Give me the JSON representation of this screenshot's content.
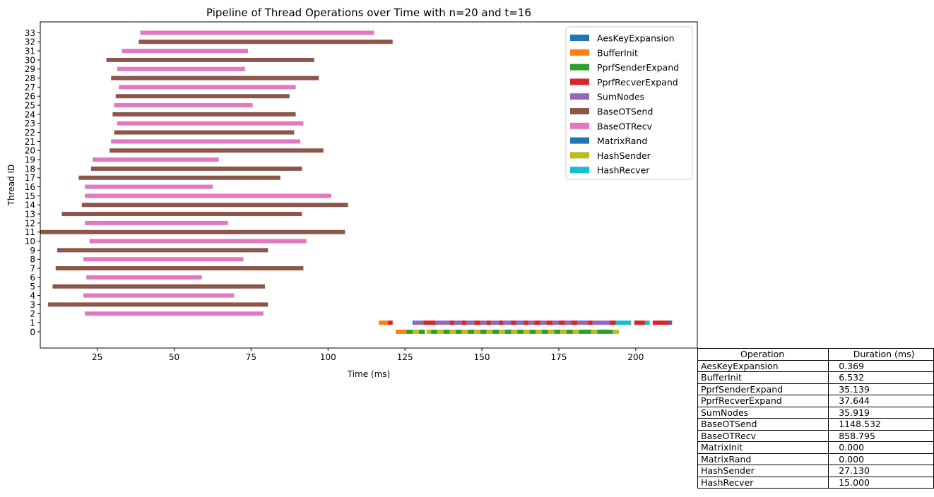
{
  "chart_data": {
    "type": "gantt",
    "title": "Pipeline of Thread Operations over Time with n=20 and t=16",
    "xlabel": "Time (ms)",
    "ylabel": "Thread ID",
    "xlim": [
      6.5,
      220
    ],
    "xticks": [
      25,
      50,
      75,
      100,
      125,
      150,
      175,
      200
    ],
    "yticks": [
      0,
      1,
      2,
      3,
      4,
      5,
      6,
      7,
      8,
      9,
      10,
      11,
      12,
      13,
      14,
      15,
      16,
      17,
      18,
      19,
      20,
      21,
      22,
      23,
      24,
      25,
      26,
      27,
      28,
      29,
      30,
      31,
      32,
      33
    ],
    "ylim": [
      -1.8,
      34.2
    ],
    "grid": false,
    "legend_position": "top-right",
    "legend": [
      {
        "name": "AesKeyExpansion",
        "color": "#1f77b4"
      },
      {
        "name": "BufferInit",
        "color": "#ff7f0e"
      },
      {
        "name": "PprfSenderExpand",
        "color": "#2ca02c"
      },
      {
        "name": "PprfRecverExpand",
        "color": "#d62728"
      },
      {
        "name": "SumNodes",
        "color": "#9467bd"
      },
      {
        "name": "BaseOTSend",
        "color": "#8c564b"
      },
      {
        "name": "BaseOTRecv",
        "color": "#e377c2"
      },
      {
        "name": "MatrixRand",
        "color": "#1f77b4"
      },
      {
        "name": "HashSender",
        "color": "#bcbd22"
      },
      {
        "name": "HashRecver",
        "color": "#17becf"
      }
    ],
    "colors": {
      "AesKeyExpansion": "#1f77b4",
      "BufferInit": "#ff7f0e",
      "PprfSenderExpand": "#2ca02c",
      "PprfRecverExpand": "#d62728",
      "SumNodes": "#9467bd",
      "BaseOTSend": "#8c564b",
      "BaseOTRecv": "#e377c2",
      "MatrixRand": "#1f77b4",
      "HashSender": "#bcbd22",
      "HashRecver": "#17becf"
    },
    "tasks": [
      {
        "thread": 33,
        "op": "BaseOTRecv",
        "start": 39.0,
        "end": 115.0
      },
      {
        "thread": 32,
        "op": "BaseOTSend",
        "start": 38.5,
        "end": 121.0
      },
      {
        "thread": 31,
        "op": "BaseOTRecv",
        "start": 33.0,
        "end": 74.0
      },
      {
        "thread": 30,
        "op": "BaseOTSend",
        "start": 28.0,
        "end": 95.5
      },
      {
        "thread": 29,
        "op": "BaseOTRecv",
        "start": 31.5,
        "end": 73.0
      },
      {
        "thread": 28,
        "op": "BaseOTSend",
        "start": 29.5,
        "end": 97.0
      },
      {
        "thread": 27,
        "op": "BaseOTRecv",
        "start": 32.0,
        "end": 89.5
      },
      {
        "thread": 26,
        "op": "BaseOTSend",
        "start": 31.0,
        "end": 87.5
      },
      {
        "thread": 25,
        "op": "BaseOTRecv",
        "start": 30.5,
        "end": 75.5
      },
      {
        "thread": 24,
        "op": "BaseOTSend",
        "start": 30.0,
        "end": 89.5
      },
      {
        "thread": 23,
        "op": "BaseOTRecv",
        "start": 31.5,
        "end": 92.0
      },
      {
        "thread": 22,
        "op": "BaseOTSend",
        "start": 30.5,
        "end": 89.0
      },
      {
        "thread": 21,
        "op": "BaseOTRecv",
        "start": 29.5,
        "end": 91.0
      },
      {
        "thread": 20,
        "op": "BaseOTSend",
        "start": 29.0,
        "end": 98.5
      },
      {
        "thread": 19,
        "op": "BaseOTRecv",
        "start": 23.5,
        "end": 64.5
      },
      {
        "thread": 18,
        "op": "BaseOTSend",
        "start": 23.0,
        "end": 91.5
      },
      {
        "thread": 17,
        "op": "BaseOTSend",
        "start": 19.0,
        "end": 84.5
      },
      {
        "thread": 16,
        "op": "BaseOTRecv",
        "start": 21.0,
        "end": 62.5
      },
      {
        "thread": 15,
        "op": "BaseOTRecv",
        "start": 21.0,
        "end": 101.0
      },
      {
        "thread": 14,
        "op": "BaseOTSend",
        "start": 20.0,
        "end": 106.5
      },
      {
        "thread": 13,
        "op": "BaseOTSend",
        "start": 13.5,
        "end": 91.5
      },
      {
        "thread": 12,
        "op": "BaseOTRecv",
        "start": 21.0,
        "end": 67.5
      },
      {
        "thread": 11,
        "op": "BaseOTSend",
        "start": 6.5,
        "end": 105.5
      },
      {
        "thread": 10,
        "op": "BaseOTRecv",
        "start": 22.5,
        "end": 93.0
      },
      {
        "thread": 9,
        "op": "BaseOTSend",
        "start": 12.0,
        "end": 80.5
      },
      {
        "thread": 8,
        "op": "BaseOTRecv",
        "start": 20.5,
        "end": 72.5
      },
      {
        "thread": 7,
        "op": "BaseOTSend",
        "start": 11.5,
        "end": 92.0
      },
      {
        "thread": 6,
        "op": "BaseOTRecv",
        "start": 21.5,
        "end": 59.0
      },
      {
        "thread": 5,
        "op": "BaseOTSend",
        "start": 10.5,
        "end": 79.5
      },
      {
        "thread": 4,
        "op": "BaseOTRecv",
        "start": 20.5,
        "end": 69.5
      },
      {
        "thread": 3,
        "op": "BaseOTSend",
        "start": 9.0,
        "end": 80.5
      },
      {
        "thread": 2,
        "op": "BaseOTRecv",
        "start": 21.0,
        "end": 79.0
      },
      {
        "thread": 1,
        "op": "BufferInit",
        "start": 116.5,
        "end": 119.5
      },
      {
        "thread": 1,
        "op": "PprfRecverExpand",
        "start": 119.5,
        "end": 121.0
      },
      {
        "thread": 1,
        "op": "AesKeyExpansion",
        "start": 127.5,
        "end": 128.0
      },
      {
        "thread": 1,
        "op": "SumNodes",
        "start": 128.0,
        "end": 131.0
      },
      {
        "thread": 1,
        "op": "PprfRecverExpand",
        "start": 131.0,
        "end": 135.0
      },
      {
        "thread": 1,
        "op": "SumNodes",
        "start": 135.0,
        "end": 139.5
      },
      {
        "thread": 1,
        "op": "PprfRecverExpand",
        "start": 139.5,
        "end": 141.0
      },
      {
        "thread": 1,
        "op": "SumNodes",
        "start": 141.0,
        "end": 143.5
      },
      {
        "thread": 1,
        "op": "PprfRecverExpand",
        "start": 143.5,
        "end": 145.0
      },
      {
        "thread": 1,
        "op": "SumNodes",
        "start": 145.0,
        "end": 147.5
      },
      {
        "thread": 1,
        "op": "PprfRecverExpand",
        "start": 147.5,
        "end": 149.5
      },
      {
        "thread": 1,
        "op": "SumNodes",
        "start": 149.5,
        "end": 151.5
      },
      {
        "thread": 1,
        "op": "PprfRecverExpand",
        "start": 151.5,
        "end": 153.0
      },
      {
        "thread": 1,
        "op": "SumNodes",
        "start": 153.0,
        "end": 155.5
      },
      {
        "thread": 1,
        "op": "PprfRecverExpand",
        "start": 155.5,
        "end": 157.0
      },
      {
        "thread": 1,
        "op": "SumNodes",
        "start": 157.0,
        "end": 159.5
      },
      {
        "thread": 1,
        "op": "PprfRecverExpand",
        "start": 159.5,
        "end": 161.0
      },
      {
        "thread": 1,
        "op": "SumNodes",
        "start": 161.0,
        "end": 163.5
      },
      {
        "thread": 1,
        "op": "PprfRecverExpand",
        "start": 163.5,
        "end": 165.0
      },
      {
        "thread": 1,
        "op": "SumNodes",
        "start": 165.0,
        "end": 167.0
      },
      {
        "thread": 1,
        "op": "PprfRecverExpand",
        "start": 167.0,
        "end": 169.0
      },
      {
        "thread": 1,
        "op": "SumNodes",
        "start": 169.0,
        "end": 171.0
      },
      {
        "thread": 1,
        "op": "PprfRecverExpand",
        "start": 171.0,
        "end": 173.0
      },
      {
        "thread": 1,
        "op": "SumNodes",
        "start": 173.0,
        "end": 175.0
      },
      {
        "thread": 1,
        "op": "PprfRecverExpand",
        "start": 175.0,
        "end": 177.0
      },
      {
        "thread": 1,
        "op": "SumNodes",
        "start": 177.0,
        "end": 179.0
      },
      {
        "thread": 1,
        "op": "PprfRecverExpand",
        "start": 179.0,
        "end": 181.0
      },
      {
        "thread": 1,
        "op": "SumNodes",
        "start": 181.0,
        "end": 184.5
      },
      {
        "thread": 1,
        "op": "PprfRecverExpand",
        "start": 184.5,
        "end": 186.0
      },
      {
        "thread": 1,
        "op": "SumNodes",
        "start": 186.0,
        "end": 191.5
      },
      {
        "thread": 1,
        "op": "PprfRecverExpand",
        "start": 191.5,
        "end": 193.5
      },
      {
        "thread": 1,
        "op": "HashRecver",
        "start": 193.5,
        "end": 198.5
      },
      {
        "thread": 1,
        "op": "PprfRecverExpand",
        "start": 199.5,
        "end": 203.0
      },
      {
        "thread": 1,
        "op": "HashRecver",
        "start": 203.0,
        "end": 204.5
      },
      {
        "thread": 1,
        "op": "PprfRecverExpand",
        "start": 205.5,
        "end": 211.0
      },
      {
        "thread": 1,
        "op": "AesKeyExpansion",
        "start": 211.0,
        "end": 211.8
      },
      {
        "thread": 0,
        "op": "BufferInit",
        "start": 122.0,
        "end": 125.5
      },
      {
        "thread": 0,
        "op": "PprfSenderExpand",
        "start": 125.5,
        "end": 127.5
      },
      {
        "thread": 0,
        "op": "HashSender",
        "start": 127.5,
        "end": 129.5
      },
      {
        "thread": 0,
        "op": "PprfSenderExpand",
        "start": 129.5,
        "end": 131.5
      },
      {
        "thread": 0,
        "op": "HashSender",
        "start": 132.0,
        "end": 133.5
      },
      {
        "thread": 0,
        "op": "PprfSenderExpand",
        "start": 133.5,
        "end": 135.5
      },
      {
        "thread": 0,
        "op": "HashSender",
        "start": 135.5,
        "end": 137.5
      },
      {
        "thread": 0,
        "op": "PprfSenderExpand",
        "start": 137.5,
        "end": 139.5
      },
      {
        "thread": 0,
        "op": "HashSender",
        "start": 139.5,
        "end": 141.5
      },
      {
        "thread": 0,
        "op": "PprfSenderExpand",
        "start": 141.5,
        "end": 143.5
      },
      {
        "thread": 0,
        "op": "HashSender",
        "start": 143.5,
        "end": 145.5
      },
      {
        "thread": 0,
        "op": "PprfSenderExpand",
        "start": 145.5,
        "end": 147.5
      },
      {
        "thread": 0,
        "op": "HashSender",
        "start": 147.5,
        "end": 149.5
      },
      {
        "thread": 0,
        "op": "PprfSenderExpand",
        "start": 149.5,
        "end": 151.5
      },
      {
        "thread": 0,
        "op": "HashSender",
        "start": 151.5,
        "end": 153.5
      },
      {
        "thread": 0,
        "op": "PprfSenderExpand",
        "start": 153.5,
        "end": 155.5
      },
      {
        "thread": 0,
        "op": "HashSender",
        "start": 155.5,
        "end": 157.5
      },
      {
        "thread": 0,
        "op": "PprfSenderExpand",
        "start": 157.5,
        "end": 159.5
      },
      {
        "thread": 0,
        "op": "HashSender",
        "start": 159.5,
        "end": 161.5
      },
      {
        "thread": 0,
        "op": "PprfSenderExpand",
        "start": 161.5,
        "end": 163.5
      },
      {
        "thread": 0,
        "op": "HashSender",
        "start": 163.5,
        "end": 165.5
      },
      {
        "thread": 0,
        "op": "PprfSenderExpand",
        "start": 165.5,
        "end": 167.5
      },
      {
        "thread": 0,
        "op": "HashSender",
        "start": 167.5,
        "end": 169.5
      },
      {
        "thread": 0,
        "op": "PprfSenderExpand",
        "start": 169.5,
        "end": 171.5
      },
      {
        "thread": 0,
        "op": "HashSender",
        "start": 171.5,
        "end": 173.5
      },
      {
        "thread": 0,
        "op": "PprfSenderExpand",
        "start": 173.5,
        "end": 175.5
      },
      {
        "thread": 0,
        "op": "HashSender",
        "start": 175.5,
        "end": 177.5
      },
      {
        "thread": 0,
        "op": "PprfSenderExpand",
        "start": 177.5,
        "end": 179.5
      },
      {
        "thread": 0,
        "op": "HashSender",
        "start": 179.5,
        "end": 181.5
      },
      {
        "thread": 0,
        "op": "PprfSenderExpand",
        "start": 181.5,
        "end": 185.5
      },
      {
        "thread": 0,
        "op": "HashSender",
        "start": 185.5,
        "end": 187.5
      },
      {
        "thread": 0,
        "op": "PprfSenderExpand",
        "start": 187.5,
        "end": 192.5
      },
      {
        "thread": 0,
        "op": "HashSender",
        "start": 192.5,
        "end": 194.5
      }
    ]
  },
  "table": {
    "headers": [
      "Operation",
      "Duration (ms)"
    ],
    "rows": [
      [
        "AesKeyExpansion",
        "0.369"
      ],
      [
        "BufferInit",
        "6.532"
      ],
      [
        "PprfSenderExpand",
        "35.139"
      ],
      [
        "PprfRecverExpand",
        "37.644"
      ],
      [
        "SumNodes",
        "35.919"
      ],
      [
        "BaseOTSend",
        "1148.532"
      ],
      [
        "BaseOTRecv",
        "858.795"
      ],
      [
        "MatrixInit",
        "0.000"
      ],
      [
        "MatrixRand",
        "0.000"
      ],
      [
        "HashSender",
        "27.130"
      ],
      [
        "HashRecver",
        "15.000"
      ]
    ]
  }
}
